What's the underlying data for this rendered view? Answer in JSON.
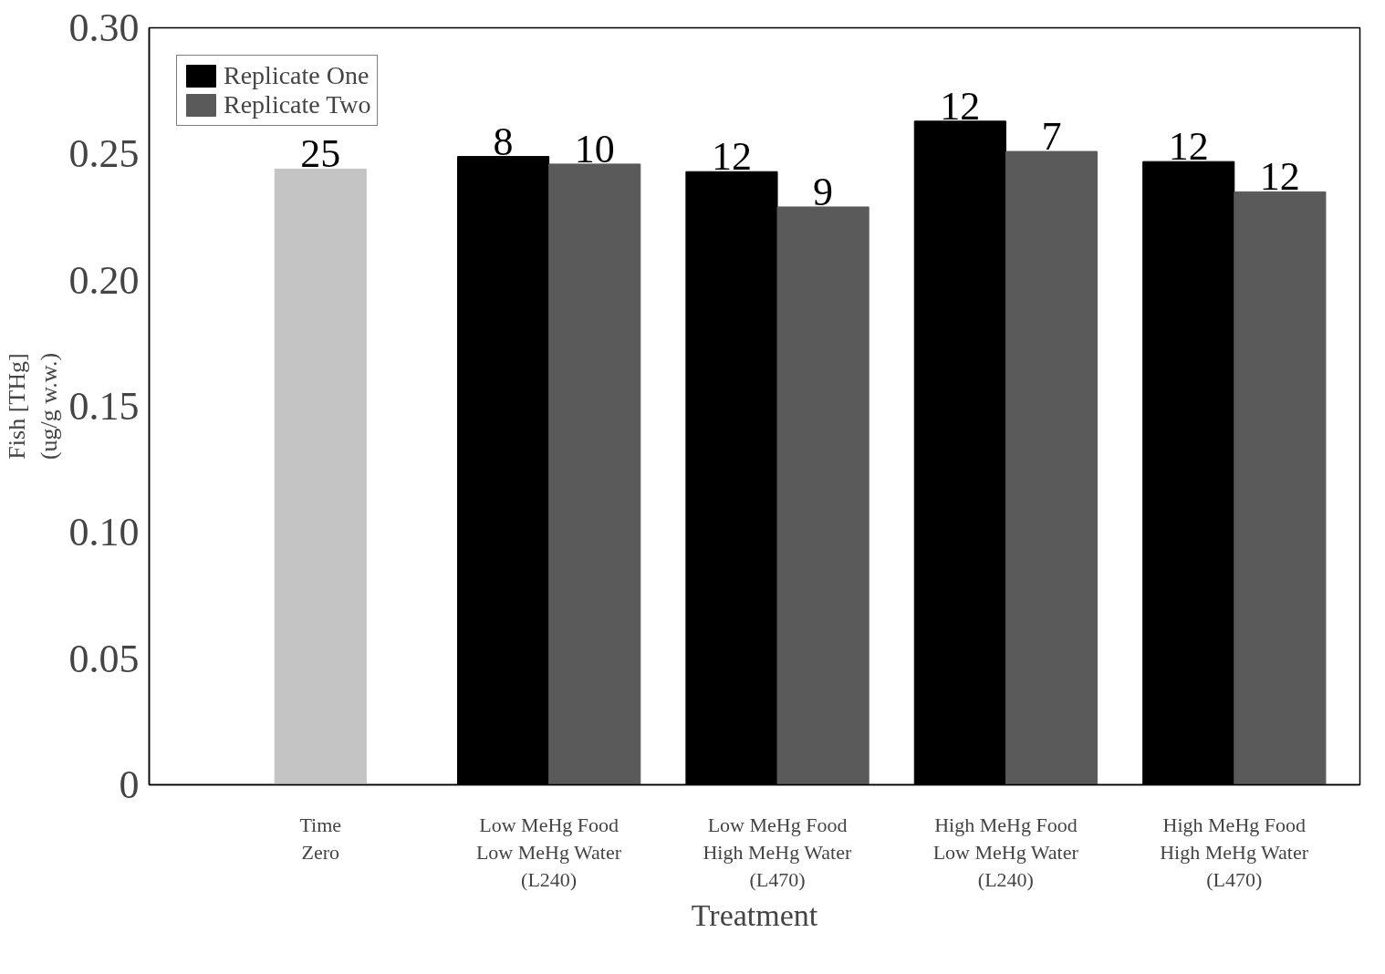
{
  "chart_data": {
    "type": "bar",
    "xlabel": "Treatment",
    "ylabel": "Fish [THg]\n(ug/g w.w.)",
    "categories": [
      "Time\nZero",
      "Low MeHg Food\nLow MeHg Water\n(L240)",
      "Low MeHg Food\nHigh MeHg Water\n(L470)",
      "High MeHg Food\nLow MeHg Water\n(L240)",
      "High MeHg Food\nHigh MeHg Water\n(L470)"
    ],
    "series": [
      {
        "color": "#c4c4c4",
        "values": [
          0.244,
          null,
          null,
          null,
          null
        ]
      },
      {
        "name": "Replicate One",
        "color": "#000000",
        "values": [
          null,
          0.249,
          0.243,
          0.263,
          0.247
        ]
      },
      {
        "name": "Replicate Two",
        "color": "#5a5a5a",
        "values": [
          null,
          0.246,
          0.229,
          0.251,
          0.235
        ]
      }
    ],
    "annotations": [
      {
        "text": "25",
        "x": "Time\nZero",
        "y": 0.244
      },
      {
        "text": "8",
        "x": "Low MeHg Food\nLow MeHg Water\n(L240)",
        "y": 0.249
      },
      {
        "text": "10",
        "x": "Low MeHg Food\nLow MeHg Water\n(L240)",
        "y": 0.246
      },
      {
        "text": "12",
        "x": "Low MeHg Food\nHigh MeHg Water\n(L470)",
        "y": 0.243
      },
      {
        "text": "9",
        "x": "Low MeHg Food\nHigh MeHg Water\n(L470)",
        "y": 0.229
      },
      {
        "text": "12",
        "x": "High MeHg Food\nLow MeHg Water\n(L240)",
        "y": 0.263
      },
      {
        "text": "7",
        "x": "High MeHg Food\nLow MeHg Water\n(L240)",
        "y": 0.251
      },
      {
        "text": "12",
        "x": "High MeHg Food\nHigh MeHg Water\n(L470)",
        "y": 0.247
      },
      {
        "text": "12",
        "x": "High MeHg Food\nHigh MeHg Water\n(L470)",
        "y": 0.235
      }
    ],
    "ylim": [
      0,
      0.3
    ],
    "yticks": [
      {
        "value": 0,
        "label": "0"
      },
      {
        "value": 0.05,
        "label": "0.05"
      },
      {
        "value": 0.1,
        "label": "0.10"
      },
      {
        "value": 0.15,
        "label": "0.15"
      },
      {
        "value": 0.2,
        "label": "0.20"
      },
      {
        "value": 0.25,
        "label": "0.25"
      },
      {
        "value": 0.3,
        "label": "0.30"
      }
    ],
    "grid": false,
    "legend": "top left"
  }
}
